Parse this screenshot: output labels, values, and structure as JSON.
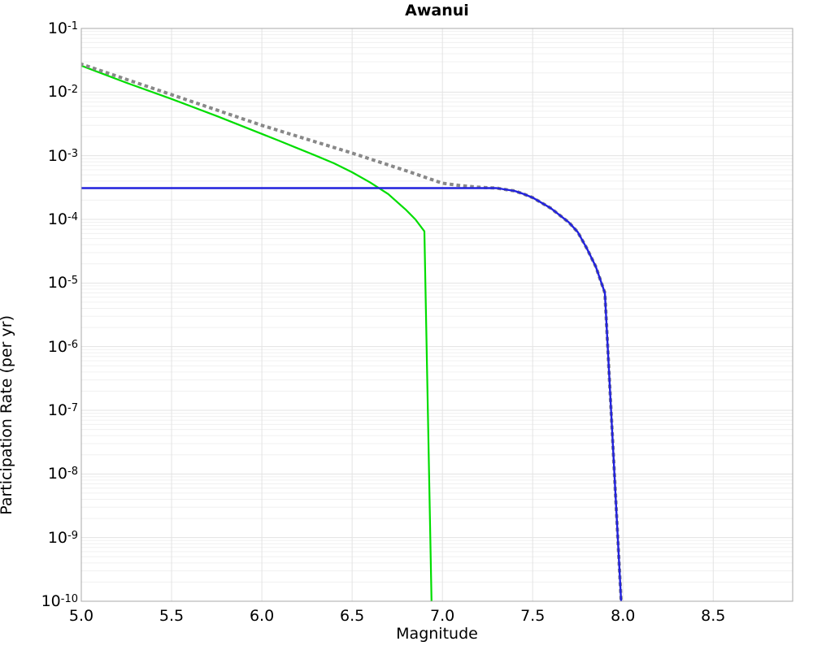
{
  "title": "Awanui",
  "axes": {
    "xlabel": "Magnitude",
    "ylabel": "Participation Rate (per yr)",
    "x_ticks": [
      {
        "label": "5.0",
        "value": 5.0
      },
      {
        "label": "5.5",
        "value": 5.5
      },
      {
        "label": "6.0",
        "value": 6.0
      },
      {
        "label": "6.5",
        "value": 6.5
      },
      {
        "label": "7.0",
        "value": 7.0
      },
      {
        "label": "7.5",
        "value": 7.5
      },
      {
        "label": "8.0",
        "value": 8.0
      },
      {
        "label": "8.5",
        "value": 8.5
      }
    ],
    "y_ticks": [
      {
        "base": "10",
        "exponent": "-1",
        "value": 0.1
      },
      {
        "base": "10",
        "exponent": "-2",
        "value": 0.01
      },
      {
        "base": "10",
        "exponent": "-3",
        "value": 0.001
      },
      {
        "base": "10",
        "exponent": "-4",
        "value": 0.0001
      },
      {
        "base": "10",
        "exponent": "-5",
        "value": 1e-05
      },
      {
        "base": "10",
        "exponent": "-6",
        "value": 1e-06
      },
      {
        "base": "10",
        "exponent": "-7",
        "value": 1e-07
      },
      {
        "base": "10",
        "exponent": "-8",
        "value": 1e-08
      },
      {
        "base": "10",
        "exponent": "-9",
        "value": 1e-09
      },
      {
        "base": "10",
        "exponent": "-10",
        "value": 1e-10
      }
    ]
  },
  "colors": {
    "green_curve": "#00dd00",
    "blue_curve": "#2222dd",
    "gray_dotted_curve": "#888888",
    "grid_major": "#e3e3e3",
    "grid_minor": "#f0f0f0",
    "axis_border": "#a8a8a8",
    "text": "#000000"
  },
  "chart_data": {
    "type": "line",
    "title": "Awanui",
    "xlabel": "Magnitude",
    "ylabel": "Participation Rate (per yr)",
    "xlim": [
      5.0,
      8.94
    ],
    "ylim": [
      1e-10,
      0.1
    ],
    "yscale": "log",
    "grid": true,
    "legend": false,
    "series": [
      {
        "name": "green-solid-curve",
        "color": "#00dd00",
        "line_style": "solid",
        "line_width": 2.2,
        "x": [
          5.0,
          5.25,
          5.5,
          5.75,
          6.0,
          6.1,
          6.2,
          6.3,
          6.4,
          6.5,
          6.6,
          6.7,
          6.8,
          6.85,
          6.9,
          6.94
        ],
        "y": [
          0.026,
          0.014,
          0.0078,
          0.0042,
          0.0022,
          0.0017,
          0.0013,
          0.001,
          0.00076,
          0.00055,
          0.00038,
          0.00025,
          0.00014,
          0.0001,
          6.5e-05,
          1e-10
        ]
      },
      {
        "name": "gray-dotted-curve",
        "color": "#888888",
        "line_style": "dotted",
        "line_width": 4,
        "x": [
          5.0,
          5.5,
          6.0,
          6.5,
          6.8,
          7.0,
          7.1,
          7.2,
          7.3,
          7.4,
          7.45,
          7.5,
          7.6,
          7.7,
          7.75,
          7.8,
          7.85,
          7.9,
          7.99
        ],
        "y": [
          0.0275,
          0.0091,
          0.003,
          0.0011,
          0.00058,
          0.00037,
          0.00034,
          0.00032,
          0.00031,
          0.00028,
          0.00025,
          0.00022,
          0.00015,
          9e-05,
          6.3e-05,
          3.5e-05,
          1.8e-05,
          7e-06,
          1e-10
        ]
      },
      {
        "name": "blue-solid-curve",
        "color": "#2222dd",
        "line_style": "solid",
        "line_width": 2.4,
        "x": [
          5.0,
          6.0,
          7.0,
          7.2,
          7.3,
          7.4,
          7.45,
          7.5,
          7.6,
          7.7,
          7.75,
          7.8,
          7.85,
          7.9,
          7.99
        ],
        "y": [
          0.00031,
          0.00031,
          0.00031,
          0.00031,
          0.00031,
          0.00028,
          0.00025,
          0.00022,
          0.00015,
          9e-05,
          6.3e-05,
          3.5e-05,
          1.8e-05,
          7e-06,
          1e-10
        ]
      }
    ]
  }
}
